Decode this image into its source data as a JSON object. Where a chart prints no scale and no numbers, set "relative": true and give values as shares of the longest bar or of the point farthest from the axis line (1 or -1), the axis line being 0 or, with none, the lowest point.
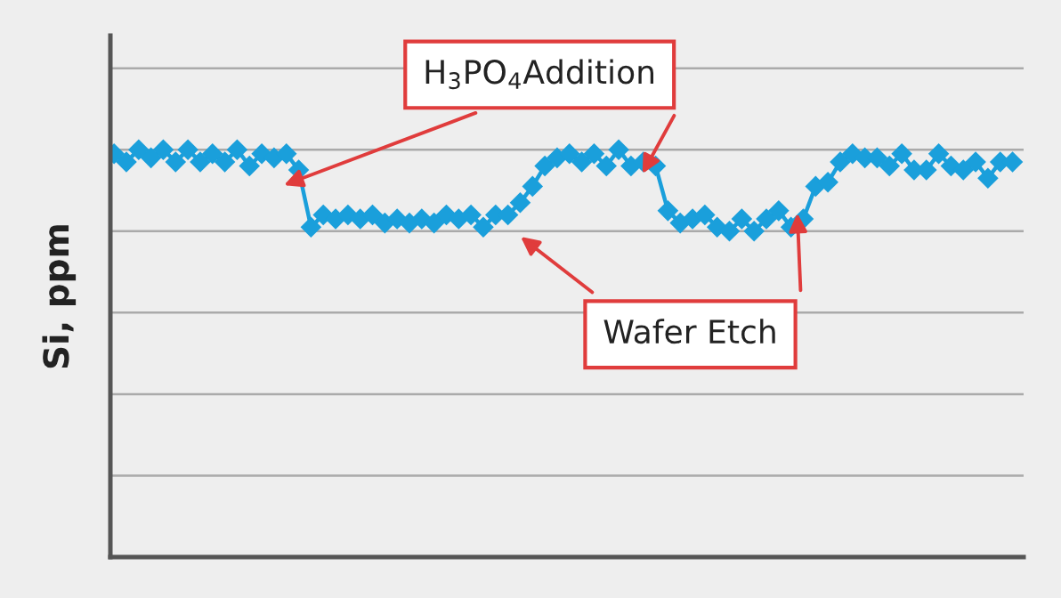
{
  "chart_data": {
    "type": "line",
    "ylabel": "Si, ppm",
    "relative": true,
    "grid": "y",
    "marker": "diamond",
    "line_style": "solid",
    "categories": [
      null,
      null,
      null,
      null,
      null,
      null,
      null,
      null,
      null,
      null,
      null,
      null,
      null,
      null,
      null,
      null,
      null,
      null,
      null,
      null,
      null,
      null,
      null,
      null,
      null,
      null,
      null,
      null,
      null,
      null,
      null,
      null,
      null,
      null,
      null,
      null,
      null,
      null,
      null,
      null,
      null,
      null,
      null,
      null,
      null,
      null,
      null,
      null,
      null,
      null,
      null,
      null,
      null,
      null,
      null,
      null,
      null,
      null,
      null,
      null,
      null,
      null,
      null,
      null,
      null,
      null,
      null,
      null,
      null,
      null,
      null,
      null,
      null,
      null
    ],
    "series": [
      {
        "color": "#1a9fdb",
        "values": [
          0.99,
          0.97,
          1.0,
          0.98,
          1.0,
          0.97,
          1.0,
          0.97,
          0.99,
          0.97,
          1.0,
          0.96,
          0.99,
          0.98,
          0.99,
          0.95,
          0.81,
          0.84,
          0.83,
          0.84,
          0.83,
          0.84,
          0.82,
          0.83,
          0.82,
          0.83,
          0.82,
          0.84,
          0.83,
          0.84,
          0.81,
          0.84,
          0.84,
          0.87,
          0.91,
          0.96,
          0.98,
          0.99,
          0.97,
          0.99,
          0.96,
          1.0,
          0.96,
          0.97,
          0.96,
          0.85,
          0.82,
          0.83,
          0.84,
          0.81,
          0.8,
          0.83,
          0.8,
          0.83,
          0.85,
          0.81,
          0.83,
          0.91,
          0.92,
          0.97,
          0.99,
          0.98,
          0.98,
          0.96,
          0.99,
          0.95,
          0.95,
          0.99,
          0.96,
          0.95,
          0.97,
          0.93,
          0.97,
          0.97
        ]
      }
    ],
    "annotations": [
      "H$_{3}$PO$_{4}$Addition",
      "Wafer Etch"
    ]
  }
}
